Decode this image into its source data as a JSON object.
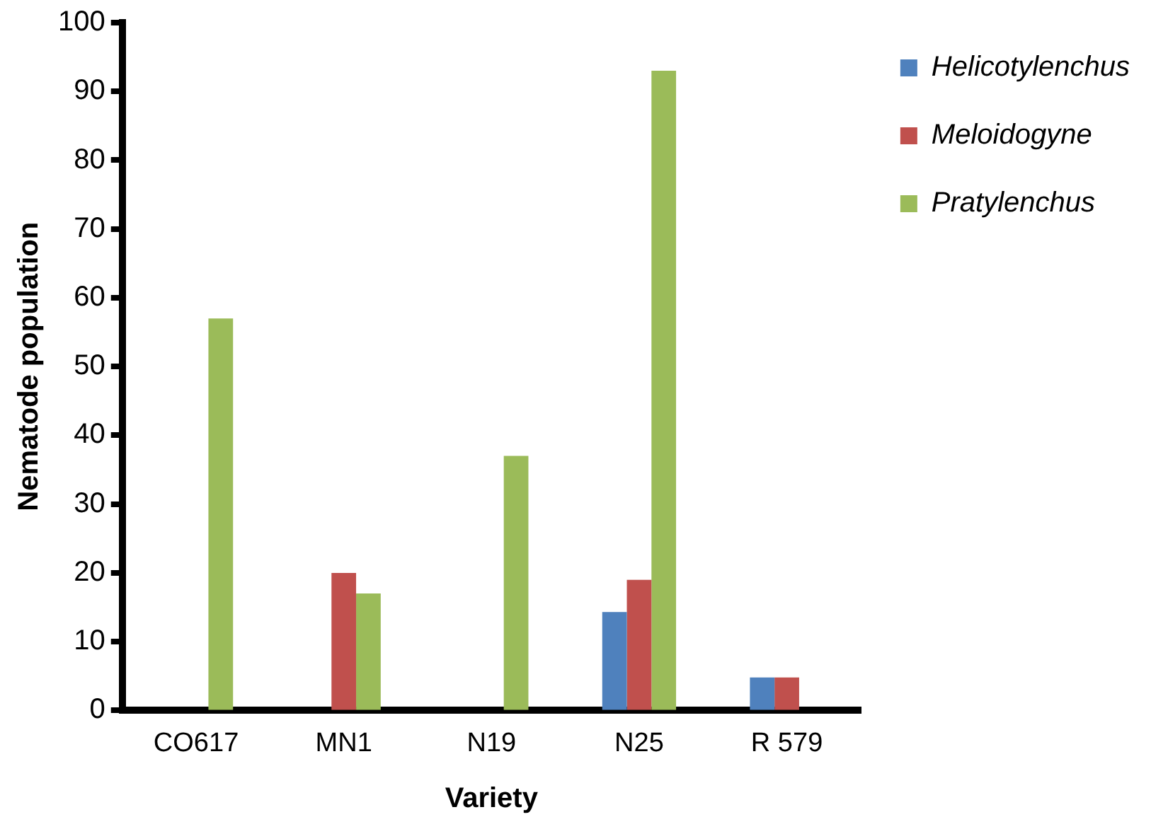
{
  "chart_data": {
    "type": "bar",
    "xlabel": "Variety",
    "ylabel": "Nematode population",
    "categories": [
      "CO617",
      "MN1",
      "N19",
      "N25",
      "R 579"
    ],
    "series": [
      {
        "name": "Helicotylenchus",
        "color": "#4f81bd",
        "values": [
          0,
          0,
          0,
          14.3,
          4.8
        ]
      },
      {
        "name": "Meloidogyne",
        "color": "#c0504d",
        "values": [
          0,
          20,
          0,
          19,
          4.8
        ]
      },
      {
        "name": "Pratylenchus",
        "color": "#9bbb59",
        "values": [
          57,
          17,
          37,
          93,
          0
        ]
      }
    ],
    "ylim": [
      0,
      100
    ],
    "yticks": [
      0,
      10,
      20,
      30,
      40,
      50,
      60,
      70,
      80,
      90,
      100
    ],
    "grid": false,
    "legend": "top right"
  }
}
